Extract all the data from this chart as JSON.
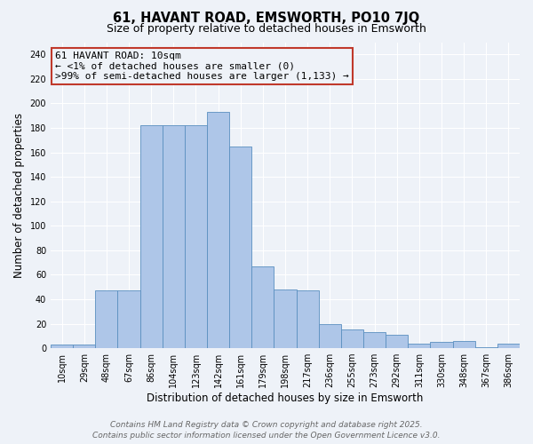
{
  "title": "61, HAVANT ROAD, EMSWORTH, PO10 7JQ",
  "subtitle": "Size of property relative to detached houses in Emsworth",
  "xlabel": "Distribution of detached houses by size in Emsworth",
  "ylabel": "Number of detached properties",
  "categories": [
    "10sqm",
    "29sqm",
    "48sqm",
    "67sqm",
    "86sqm",
    "104sqm",
    "123sqm",
    "142sqm",
    "161sqm",
    "179sqm",
    "198sqm",
    "217sqm",
    "236sqm",
    "255sqm",
    "273sqm",
    "292sqm",
    "311sqm",
    "330sqm",
    "348sqm",
    "367sqm",
    "386sqm"
  ],
  "values": [
    3,
    3,
    47,
    47,
    182,
    182,
    182,
    193,
    165,
    67,
    48,
    47,
    20,
    15,
    13,
    11,
    4,
    5,
    6,
    1,
    4
  ],
  "bar_color": "#aec6e8",
  "bar_edge_color": "#5a8fc0",
  "annotation_box_color": "#c0392b",
  "annotation_text": "61 HAVANT ROAD: 10sqm\n← <1% of detached houses are smaller (0)\n>99% of semi-detached houses are larger (1,133) →",
  "footer_text": "Contains HM Land Registry data © Crown copyright and database right 2025.\nContains public sector information licensed under the Open Government Licence v3.0.",
  "background_color": "#eef2f8",
  "ylim": [
    0,
    250
  ],
  "yticks": [
    0,
    20,
    40,
    60,
    80,
    100,
    120,
    140,
    160,
    180,
    200,
    220,
    240
  ],
  "title_fontsize": 10.5,
  "subtitle_fontsize": 9,
  "xlabel_fontsize": 8.5,
  "ylabel_fontsize": 8.5,
  "tick_fontsize": 7,
  "footer_fontsize": 6.5,
  "annotation_fontsize": 8
}
